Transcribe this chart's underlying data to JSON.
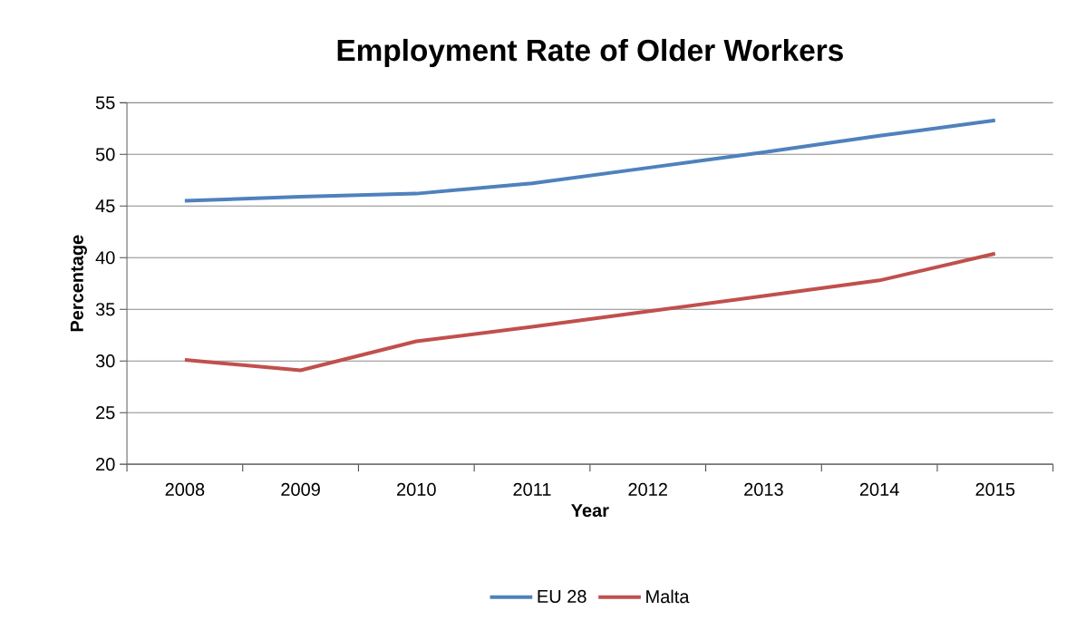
{
  "chart_data": {
    "type": "line",
    "title": "Employment Rate of Older Workers",
    "xlabel": "Year",
    "ylabel": "Percentage",
    "categories": [
      "2008",
      "2009",
      "2010",
      "2011",
      "2012",
      "2013",
      "2014",
      "2015"
    ],
    "series": [
      {
        "name": "EU 28",
        "color": "#4f81bd",
        "values": [
          45.5,
          45.9,
          46.2,
          47.2,
          48.7,
          50.2,
          51.8,
          53.3
        ]
      },
      {
        "name": "Malta",
        "color": "#c0504d",
        "values": [
          30.1,
          29.1,
          31.9,
          33.3,
          34.8,
          36.3,
          37.8,
          40.4
        ]
      }
    ],
    "ylim": [
      20,
      55
    ],
    "yticks": [
      20,
      25,
      30,
      35,
      40,
      45,
      50,
      55
    ],
    "grid": "y",
    "legend": "bottom",
    "marker": "none"
  }
}
